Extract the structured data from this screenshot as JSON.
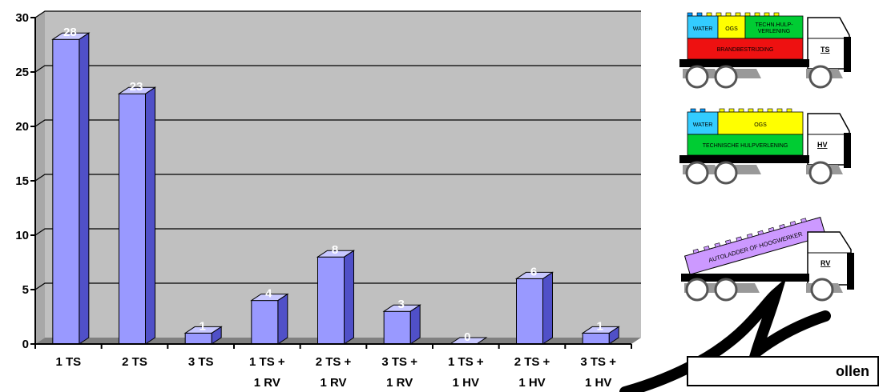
{
  "chart_data": {
    "type": "bar",
    "categories": [
      [
        "1 TS",
        ""
      ],
      [
        "2 TS",
        ""
      ],
      [
        "3 TS",
        ""
      ],
      [
        "1 TS +",
        "1 RV"
      ],
      [
        "2 TS +",
        "1 RV"
      ],
      [
        "3 TS +",
        "1 RV"
      ],
      [
        "1 TS +",
        "1 HV"
      ],
      [
        "2 TS +",
        "1 HV"
      ],
      [
        "3 TS +",
        "1 HV"
      ]
    ],
    "values": [
      28,
      23,
      1,
      4,
      8,
      3,
      0,
      6,
      1
    ],
    "ylim": [
      0,
      30
    ],
    "yticks": [
      0,
      5,
      10,
      15,
      20,
      25,
      30
    ],
    "grid": true,
    "colors": {
      "bar_front": "#9999ff",
      "bar_side": "#5050c8",
      "bar_top": "#c8c8ff",
      "plot_bg": "#c0c0c0",
      "floor": "#808080"
    }
  },
  "trucks": [
    {
      "blocks": [
        "WATER",
        "OGS",
        "TECHN.HULP-",
        "VERLENING"
      ],
      "base": "BRANDBESTRIJDING",
      "cab": "TS"
    },
    {
      "blocks": [
        "WATER",
        "OGS"
      ],
      "base": "TECHNISCHE HULPVERLENING",
      "cab": "HV"
    },
    {
      "ladder": "AUTOLADDER OF HOOGWERKER",
      "cab": "RV"
    }
  ],
  "legend_button": {
    "label": "ollen"
  }
}
